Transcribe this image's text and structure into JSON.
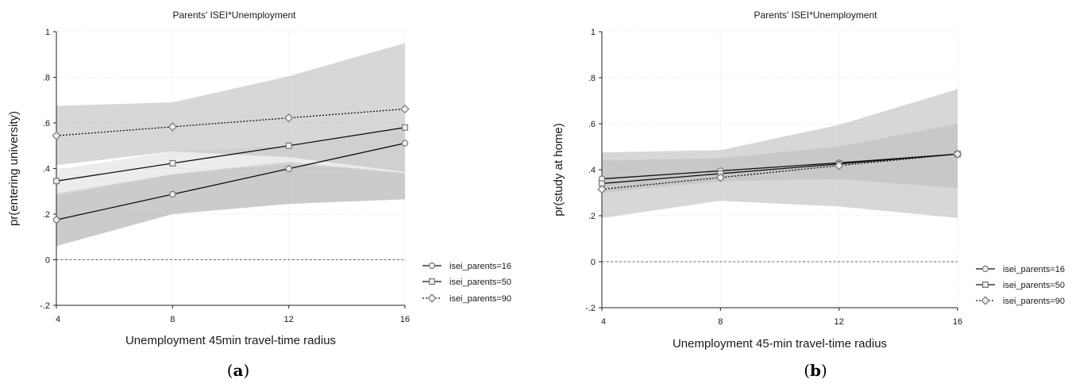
{
  "panels": [
    {
      "caption_letter": "a",
      "chart_data": {
        "type": "line",
        "title": "Parents' ISEI*Unemployment",
        "xlabel": "Unemployment 45min travel-time radius",
        "ylabel": "pr(entering university)",
        "x": [
          4,
          8,
          12,
          16
        ],
        "xticks": [
          "4",
          "8",
          "12",
          "16"
        ],
        "ylim": [
          -0.2,
          1.0
        ],
        "yticks": [
          {
            "v": 1.0,
            "label": "1"
          },
          {
            "v": 0.8,
            "label": ".8"
          },
          {
            "v": 0.6,
            "label": ".6"
          },
          {
            "v": 0.4,
            "label": ".4"
          },
          {
            "v": 0.2,
            "label": ".2"
          },
          {
            "v": 0.0,
            "label": "0"
          },
          {
            "v": -0.2,
            "label": "-.2"
          }
        ],
        "grid": true,
        "reference_line": 0,
        "legend_position": "right",
        "series": [
          {
            "name": "isei_parents=16",
            "marker": "circle",
            "dash": "solid",
            "values": [
              0.175,
              0.287,
              0.399,
              0.511
            ],
            "ci_low": [
              0.06,
              0.2,
              0.245,
              0.265
            ],
            "ci_high": [
              0.29,
              0.375,
              0.43,
              0.38
            ]
          },
          {
            "name": "isei_parents=50",
            "marker": "square",
            "dash": "solid",
            "values": [
              0.345,
              0.423,
              0.5,
              0.58
            ],
            "ci_low": [
              0.28,
              0.375,
              0.42,
              0.38
            ],
            "ci_high": [
              0.395,
              0.475,
              0.5,
              0.58
            ]
          },
          {
            "name": "isei_parents=90",
            "marker": "diamond",
            "dash": "dotted",
            "values": [
              0.544,
              0.583,
              0.622,
              0.661
            ],
            "ci_low": [
              0.415,
              0.475,
              0.45,
              0.385
            ],
            "ci_high": [
              0.675,
              0.69,
              0.805,
              0.95
            ]
          }
        ]
      }
    },
    {
      "caption_letter": "b",
      "chart_data": {
        "type": "line",
        "title": "Parents' ISEI*Unemployment",
        "xlabel": "Unemployment 45-min travel-time radius",
        "ylabel": "pr(study at home)",
        "x": [
          4,
          8,
          12,
          16
        ],
        "xticks": [
          "4",
          "8",
          "12",
          "16"
        ],
        "ylim": [
          -0.2,
          1.0
        ],
        "yticks": [
          {
            "v": 1.0,
            "label": "1"
          },
          {
            "v": 0.8,
            "label": ".8"
          },
          {
            "v": 0.6,
            "label": ".6"
          },
          {
            "v": 0.4,
            "label": ".4"
          },
          {
            "v": 0.2,
            "label": ".2"
          },
          {
            "v": 0.0,
            "label": "0"
          },
          {
            "v": -0.2,
            "label": "-.2"
          }
        ],
        "grid": true,
        "reference_line": 0,
        "legend_position": "right",
        "series": [
          {
            "name": "isei_parents=16",
            "marker": "circle",
            "dash": "solid",
            "values": [
              0.36,
              0.395,
              0.43,
              0.468
            ],
            "ci_low": [
              0.3,
              0.35,
              0.36,
              0.32
            ],
            "ci_high": [
              0.44,
              0.45,
              0.5,
              0.6
            ]
          },
          {
            "name": "isei_parents=50",
            "marker": "square",
            "dash": "solid",
            "values": [
              0.34,
              0.383,
              0.425,
              0.468
            ],
            "ci_low": [
              0.3,
              0.35,
              0.36,
              0.32
            ],
            "ci_high": [
              0.44,
              0.45,
              0.5,
              0.6
            ]
          },
          {
            "name": "isei_parents=90",
            "marker": "diamond",
            "dash": "dotted",
            "values": [
              0.315,
              0.366,
              0.418,
              0.468
            ],
            "ci_low": [
              0.19,
              0.265,
              0.24,
              0.19
            ],
            "ci_high": [
              0.475,
              0.485,
              0.595,
              0.75
            ]
          }
        ]
      }
    }
  ]
}
